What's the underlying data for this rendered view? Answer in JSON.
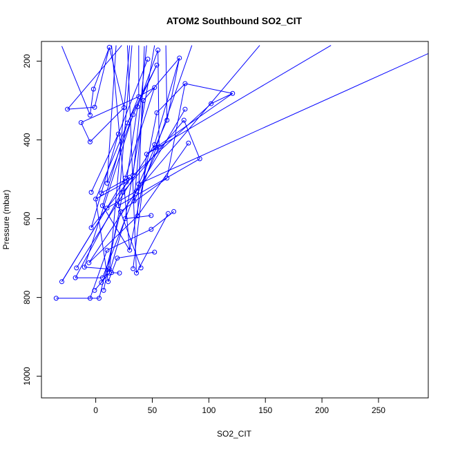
{
  "chart_data": {
    "type": "line",
    "title": "ATOM2 Southbound SO2_CIT",
    "xlabel": "SO2_CIT",
    "ylabel": "Pressure (mbar)",
    "xlim": [
      -48,
      294
    ],
    "ylim": [
      1055,
      150
    ],
    "y_reversed": true,
    "xticks": [
      0,
      50,
      100,
      150,
      200,
      250
    ],
    "yticks": [
      200,
      400,
      600,
      800,
      1000
    ],
    "grid": false,
    "series_color": "#0000ff",
    "points": [
      [
        -35,
        802
      ],
      [
        -5,
        802
      ],
      [
        3,
        802
      ],
      [
        -30,
        760
      ],
      [
        -18,
        750
      ],
      [
        -17,
        725
      ],
      [
        -10,
        723
      ],
      [
        -6,
        712
      ],
      [
        5,
        762
      ],
      [
        6,
        750
      ],
      [
        7,
        782
      ],
      [
        -1,
        782
      ],
      [
        11,
        760
      ],
      [
        12,
        738
      ],
      [
        14,
        737
      ],
      [
        21,
        738
      ],
      [
        36,
        738
      ],
      [
        40,
        725
      ],
      [
        12,
        728
      ],
      [
        33,
        727
      ],
      [
        19,
        700
      ],
      [
        30,
        680
      ],
      [
        52,
        685
      ],
      [
        10,
        680
      ],
      [
        49,
        627
      ],
      [
        -4,
        623
      ],
      [
        26,
        600
      ],
      [
        37,
        593
      ],
      [
        49,
        592
      ],
      [
        64,
        587
      ],
      [
        69,
        582
      ],
      [
        22,
        582
      ],
      [
        10,
        573
      ],
      [
        6,
        567
      ],
      [
        20,
        567
      ],
      [
        34,
        555
      ],
      [
        0,
        550
      ],
      [
        -4,
        533
      ],
      [
        5,
        535
      ],
      [
        24,
        533
      ],
      [
        36,
        530
      ],
      [
        38,
        512
      ],
      [
        10,
        510
      ],
      [
        27,
        507
      ],
      [
        30,
        495
      ],
      [
        63,
        497
      ],
      [
        26,
        497
      ],
      [
        33,
        490
      ],
      [
        92,
        448
      ],
      [
        45,
        436
      ],
      [
        53,
        420
      ],
      [
        82,
        408
      ],
      [
        52,
        412
      ],
      [
        56,
        418
      ],
      [
        -5,
        405
      ],
      [
        20,
        385
      ],
      [
        28,
        357
      ],
      [
        -13,
        356
      ],
      [
        63,
        350
      ],
      [
        78,
        350
      ],
      [
        -5,
        337
      ],
      [
        33,
        336
      ],
      [
        54,
        331
      ],
      [
        79,
        322
      ],
      [
        -25,
        322
      ],
      [
        -1,
        317
      ],
      [
        25,
        318
      ],
      [
        37,
        316
      ],
      [
        102,
        308
      ],
      [
        121,
        282
      ],
      [
        -2,
        271
      ],
      [
        38,
        290
      ],
      [
        42,
        300
      ],
      [
        52,
        267
      ],
      [
        79,
        257
      ],
      [
        54,
        210
      ],
      [
        46,
        195
      ],
      [
        74,
        192
      ],
      [
        55,
        172
      ],
      [
        12,
        165
      ]
    ],
    "segments": [
      [
        -35,
        802,
        3,
        802
      ],
      [
        -5,
        802,
        10,
        680
      ],
      [
        3,
        802,
        22,
        582
      ],
      [
        -30,
        760,
        10,
        573
      ],
      [
        -30,
        760,
        26,
        497
      ],
      [
        -18,
        750,
        6,
        750
      ],
      [
        -18,
        750,
        30,
        495
      ],
      [
        -17,
        725,
        52,
        412
      ],
      [
        -10,
        723,
        12,
        728
      ],
      [
        -10,
        723,
        33,
        336
      ],
      [
        -6,
        712,
        36,
        530
      ],
      [
        -6,
        712,
        37,
        593
      ],
      [
        5,
        762,
        12,
        728
      ],
      [
        6,
        750,
        38,
        512
      ],
      [
        7,
        782,
        24,
        533
      ],
      [
        -1,
        782,
        12,
        738
      ],
      [
        11,
        760,
        19,
        700
      ],
      [
        11,
        760,
        0,
        550
      ],
      [
        12,
        738,
        26,
        600
      ],
      [
        14,
        737,
        21,
        738
      ],
      [
        36,
        738,
        64,
        587
      ],
      [
        40,
        725,
        20,
        567
      ],
      [
        33,
        727,
        45,
        436
      ],
      [
        19,
        700,
        52,
        685
      ],
      [
        30,
        680,
        6,
        567
      ],
      [
        30,
        680,
        54,
        331
      ],
      [
        10,
        680,
        49,
        627
      ],
      [
        49,
        627,
        69,
        582
      ],
      [
        -4,
        623,
        20,
        385
      ],
      [
        -4,
        623,
        33,
        490
      ],
      [
        26,
        600,
        49,
        592
      ],
      [
        37,
        593,
        82,
        408
      ],
      [
        22,
        582,
        63,
        497
      ],
      [
        10,
        573,
        36,
        530
      ],
      [
        6,
        567,
        28,
        357
      ],
      [
        20,
        567,
        92,
        448
      ],
      [
        34,
        555,
        56,
        418
      ],
      [
        34,
        555,
        42,
        300
      ],
      [
        0,
        550,
        27,
        507
      ],
      [
        0,
        550,
        38,
        290
      ],
      [
        -4,
        533,
        20,
        385
      ],
      [
        5,
        535,
        30,
        495
      ],
      [
        24,
        533,
        78,
        350
      ],
      [
        36,
        530,
        79,
        322
      ],
      [
        38,
        512,
        63,
        350
      ],
      [
        10,
        510,
        33,
        336
      ],
      [
        27,
        507,
        37,
        316
      ],
      [
        63,
        497,
        79,
        257
      ],
      [
        26,
        497,
        52,
        267
      ],
      [
        33,
        490,
        102,
        308
      ],
      [
        92,
        448,
        78,
        350
      ],
      [
        45,
        436,
        121,
        282
      ],
      [
        52,
        412,
        74,
        192
      ],
      [
        56,
        418,
        55,
        172
      ],
      [
        -5,
        405,
        -13,
        356
      ],
      [
        -5,
        405,
        25,
        318
      ],
      [
        20,
        385,
        46,
        195
      ],
      [
        28,
        357,
        54,
        210
      ],
      [
        -13,
        356,
        38,
        290
      ],
      [
        63,
        350,
        74,
        192
      ],
      [
        -5,
        337,
        -2,
        271
      ],
      [
        33,
        336,
        54,
        210
      ],
      [
        54,
        331,
        79,
        257
      ],
      [
        -25,
        322,
        -1,
        317
      ],
      [
        -1,
        317,
        12,
        165
      ],
      [
        25,
        318,
        12,
        165
      ],
      [
        37,
        316,
        55,
        172
      ],
      [
        102,
        308,
        121,
        282
      ],
      [
        -2,
        271,
        12,
        165
      ],
      [
        38,
        290,
        52,
        267
      ],
      [
        42,
        300,
        74,
        192
      ],
      [
        79,
        257,
        121,
        282
      ],
      [
        -30,
        162,
        -5,
        337
      ],
      [
        30,
        160,
        12,
        738
      ],
      [
        43,
        162,
        37,
        593
      ],
      [
        18,
        160,
        10,
        510
      ],
      [
        23,
        160,
        -25,
        322
      ],
      [
        32,
        160,
        20,
        567
      ],
      [
        45,
        160,
        33,
        490
      ],
      [
        85,
        160,
        40,
        530
      ],
      [
        145,
        160,
        36,
        530
      ],
      [
        208,
        160,
        45,
        436
      ],
      [
        310,
        160,
        38,
        512
      ],
      [
        52,
        160,
        26,
        600
      ],
      [
        62,
        160,
        63,
        350
      ],
      [
        28,
        160,
        36,
        738
      ],
      [
        14,
        160,
        30,
        680
      ],
      [
        38,
        160,
        38,
        290
      ]
    ]
  }
}
